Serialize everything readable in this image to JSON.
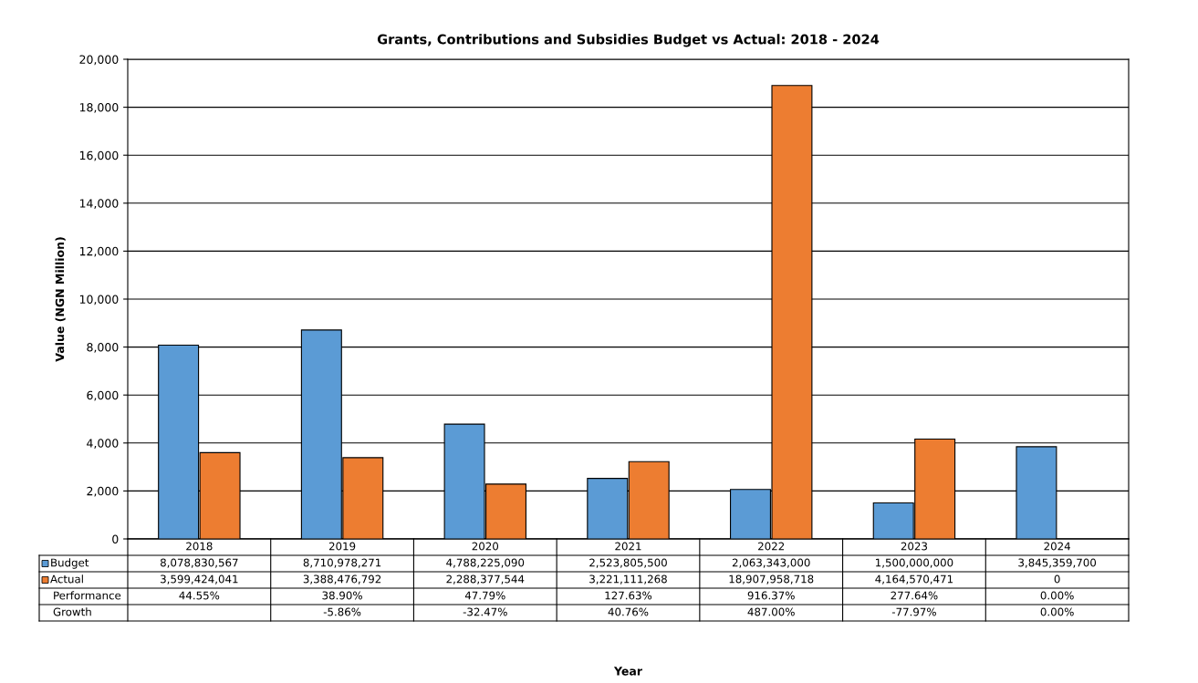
{
  "chart_data": {
    "type": "bar",
    "title": "Grants, Contributions and Subsidies Budget vs Actual: 2018 - 2024",
    "ylabel": "Value (NGN Million)",
    "categories": [
      "2018",
      "2019",
      "2020",
      "2021",
      "2022",
      "2023",
      "2024"
    ],
    "series": [
      {
        "name": "Budget",
        "color": "#5b9bd5",
        "values": [
          8079,
          8711,
          4788,
          2524,
          2063,
          1500,
          3845
        ]
      },
      {
        "name": "Actual",
        "color": "#ed7d31",
        "values": [
          3599,
          3388,
          2288,
          3221,
          18908,
          4165,
          0
        ]
      }
    ],
    "ylim": [
      0,
      20000
    ],
    "yticks": [
      0,
      {
        "value": 2000,
        "label": "2,000"
      },
      {
        "value": 4000,
        "label": "4,000"
      },
      {
        "value": 6000,
        "label": "6,000"
      },
      {
        "value": 8000,
        "label": "8,000"
      },
      {
        "value": 10000,
        "label": "10,000"
      },
      {
        "value": 12000,
        "label": "12,000"
      },
      {
        "value": 14000,
        "label": "14,000"
      },
      {
        "value": 16000,
        "label": "16,000"
      },
      {
        "value": 18000,
        "label": "18,000"
      },
      {
        "value": 20000,
        "label": "20,000"
      }
    ],
    "grid": "y",
    "legend": "bottom left",
    "annotations": [
      "8,078,830,567",
      "8,710,978,271",
      "4,788,225,090",
      "2,523,805,500",
      "2,063,343,000",
      "1,500,000,000",
      "3,845,359,700",
      "3,599,424,041",
      "3,388,476,792",
      "2,288,377,544",
      "3,221,111,268",
      "18,907,958,718",
      "4,164,570,471",
      "0",
      "Performance",
      "44.55%",
      "38.90%",
      "47.79%",
      "127.63%",
      "916.37%",
      "277.64%",
      "0.00%",
      "Growth",
      "-5.86%",
      "-32.47%",
      "40.76%",
      "487.00%",
      "-77.97%",
      "0.00%",
      "Year"
    ]
  }
}
